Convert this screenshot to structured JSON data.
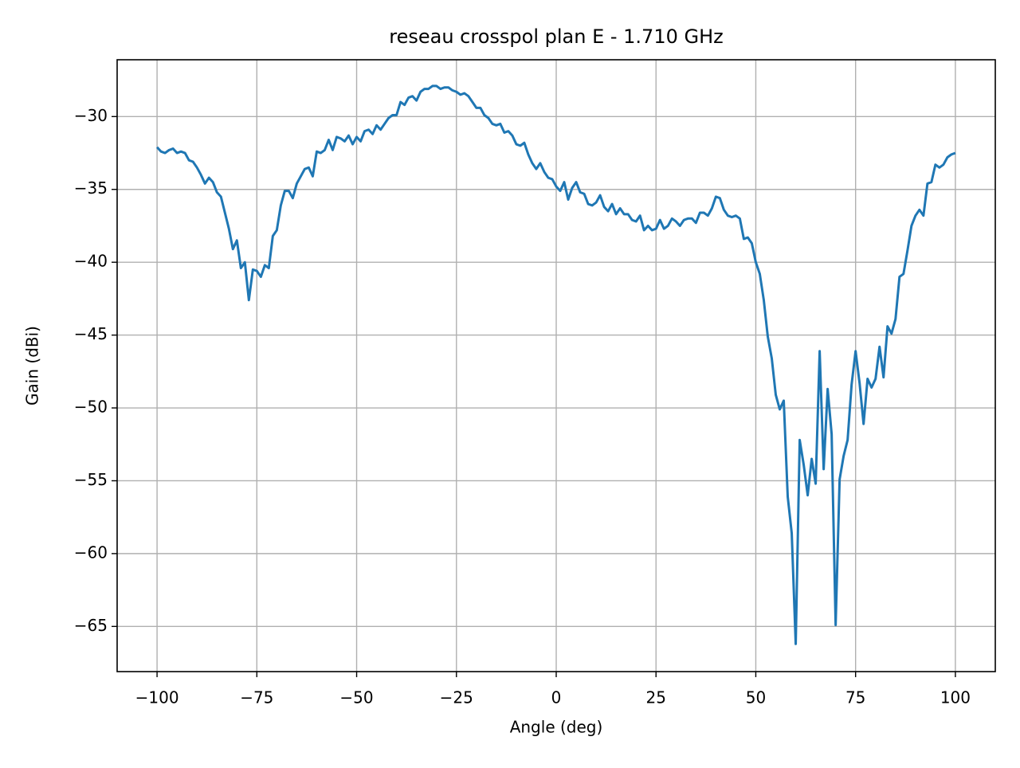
{
  "chart_data": {
    "type": "line",
    "title": "reseau crosspol plan E - 1.710 GHz",
    "x_label": "Angle (deg)",
    "y_label": "Gain (dBi)",
    "color": "#1f77b4",
    "grid": true,
    "xlim": [
      -110,
      110
    ],
    "ylim": [
      -68.1,
      -26.1
    ],
    "xticks": [
      {
        "value": -100,
        "label": "−100"
      },
      {
        "value": -75,
        "label": "−75"
      },
      {
        "value": -50,
        "label": "−50"
      },
      {
        "value": -25,
        "label": "−25"
      },
      0,
      25,
      50,
      75,
      100
    ],
    "yticks": [
      {
        "value": -30,
        "label": "−30"
      },
      {
        "value": -35,
        "label": "−35"
      },
      {
        "value": -40,
        "label": "−40"
      },
      {
        "value": -45,
        "label": "−45"
      },
      {
        "value": -50,
        "label": "−50"
      },
      {
        "value": -55,
        "label": "−55"
      },
      {
        "value": -60,
        "label": "−60"
      },
      {
        "value": -65,
        "label": "−65"
      }
    ],
    "x": [
      -100,
      -99,
      -98,
      -97,
      -96,
      -95,
      -94,
      -93,
      -92,
      -91,
      -90,
      -89,
      -88,
      -87,
      -86,
      -85,
      -84,
      -83,
      -82,
      -81,
      -80,
      -79,
      -78,
      -77,
      -76,
      -75,
      -74,
      -73,
      -72,
      -71,
      -70,
      -69,
      -68,
      -67,
      -66,
      -65,
      -64,
      -63,
      -62,
      -61,
      -60,
      -59,
      -58,
      -57,
      -56,
      -55,
      -54,
      -53,
      -52,
      -51,
      -50,
      -49,
      -48,
      -47,
      -46,
      -45,
      -44,
      -43,
      -42,
      -41,
      -40,
      -39,
      -38,
      -37,
      -36,
      -35,
      -34,
      -33,
      -32,
      -31,
      -30,
      -29,
      -28,
      -27,
      -26,
      -25,
      -24,
      -23,
      -22,
      -21,
      -20,
      -19,
      -18,
      -17,
      -16,
      -15,
      -14,
      -13,
      -12,
      -11,
      -10,
      -9,
      -8,
      -7,
      -6,
      -5,
      -4,
      -3,
      -2,
      -1,
      0,
      1,
      2,
      3,
      4,
      5,
      6,
      7,
      8,
      9,
      10,
      11,
      12,
      13,
      14,
      15,
      16,
      17,
      18,
      19,
      20,
      21,
      22,
      23,
      24,
      25,
      26,
      27,
      28,
      29,
      30,
      31,
      32,
      33,
      34,
      35,
      36,
      37,
      38,
      39,
      40,
      41,
      42,
      43,
      44,
      45,
      46,
      47,
      48,
      49,
      50,
      51,
      52,
      53,
      54,
      55,
      56,
      57,
      58,
      59,
      60,
      61,
      62,
      63,
      64,
      65,
      66,
      67,
      68,
      69,
      70,
      71,
      72,
      73,
      74,
      75,
      76,
      77,
      78,
      79,
      80,
      81,
      82,
      83,
      84,
      85,
      86,
      87,
      88,
      89,
      90,
      91,
      92,
      93,
      94,
      95,
      96,
      97,
      98,
      99,
      100
    ],
    "values": [
      -32.1,
      -32.4,
      -32.5,
      -32.3,
      -32.2,
      -32.5,
      -32.4,
      -32.5,
      -33.0,
      -33.1,
      -33.5,
      -34.0,
      -34.6,
      -34.2,
      -34.5,
      -35.2,
      -35.5,
      -36.6,
      -37.7,
      -39.1,
      -38.5,
      -40.4,
      -40.0,
      -42.6,
      -40.5,
      -40.6,
      -41.0,
      -40.2,
      -40.4,
      -38.2,
      -37.8,
      -36.1,
      -35.1,
      -35.1,
      -35.6,
      -34.6,
      -34.1,
      -33.6,
      -33.5,
      -34.1,
      -32.4,
      -32.5,
      -32.3,
      -31.6,
      -32.3,
      -31.4,
      -31.5,
      -31.7,
      -31.3,
      -31.9,
      -31.4,
      -31.7,
      -31.0,
      -30.9,
      -31.2,
      -30.6,
      -30.9,
      -30.5,
      -30.1,
      -29.9,
      -29.9,
      -29.0,
      -29.2,
      -28.7,
      -28.6,
      -28.9,
      -28.3,
      -28.1,
      -28.1,
      -27.9,
      -27.9,
      -28.1,
      -28.0,
      -28.0,
      -28.2,
      -28.3,
      -28.5,
      -28.4,
      -28.6,
      -29.0,
      -29.4,
      -29.4,
      -29.9,
      -30.1,
      -30.5,
      -30.6,
      -30.5,
      -31.1,
      -31.0,
      -31.3,
      -31.9,
      -32.0,
      -31.8,
      -32.6,
      -33.2,
      -33.6,
      -33.2,
      -33.8,
      -34.2,
      -34.3,
      -34.8,
      -35.1,
      -34.5,
      -35.7,
      -34.9,
      -34.5,
      -35.2,
      -35.3,
      -36.0,
      -36.1,
      -35.9,
      -35.4,
      -36.2,
      -36.5,
      -36.0,
      -36.7,
      -36.3,
      -36.7,
      -36.7,
      -37.1,
      -37.2,
      -36.8,
      -37.8,
      -37.5,
      -37.8,
      -37.7,
      -37.1,
      -37.7,
      -37.5,
      -37.0,
      -37.2,
      -37.5,
      -37.1,
      -37.0,
      -37.0,
      -37.3,
      -36.6,
      -36.6,
      -36.8,
      -36.3,
      -35.5,
      -35.6,
      -36.4,
      -36.8,
      -36.9,
      -36.8,
      -37.0,
      -38.4,
      -38.3,
      -38.7,
      -40.0,
      -40.8,
      -42.6,
      -45.1,
      -46.6,
      -49.1,
      -50.1,
      -49.5,
      -56.1,
      -58.6,
      -66.2,
      -52.2,
      -53.9,
      -56.0,
      -53.5,
      -55.2,
      -46.1,
      -54.2,
      -48.7,
      -51.8,
      -64.9,
      -54.9,
      -53.3,
      -52.2,
      -48.4,
      -46.1,
      -48.3,
      -51.1,
      -48.0,
      -48.6,
      -48.0,
      -45.8,
      -47.9,
      -44.4,
      -44.9,
      -43.9,
      -41.0,
      -40.8,
      -39.2,
      -37.5,
      -36.8,
      -36.4,
      -36.8,
      -34.6,
      -34.5,
      -33.3,
      -33.5,
      -33.3,
      -32.8,
      -32.6,
      -32.5
    ]
  }
}
